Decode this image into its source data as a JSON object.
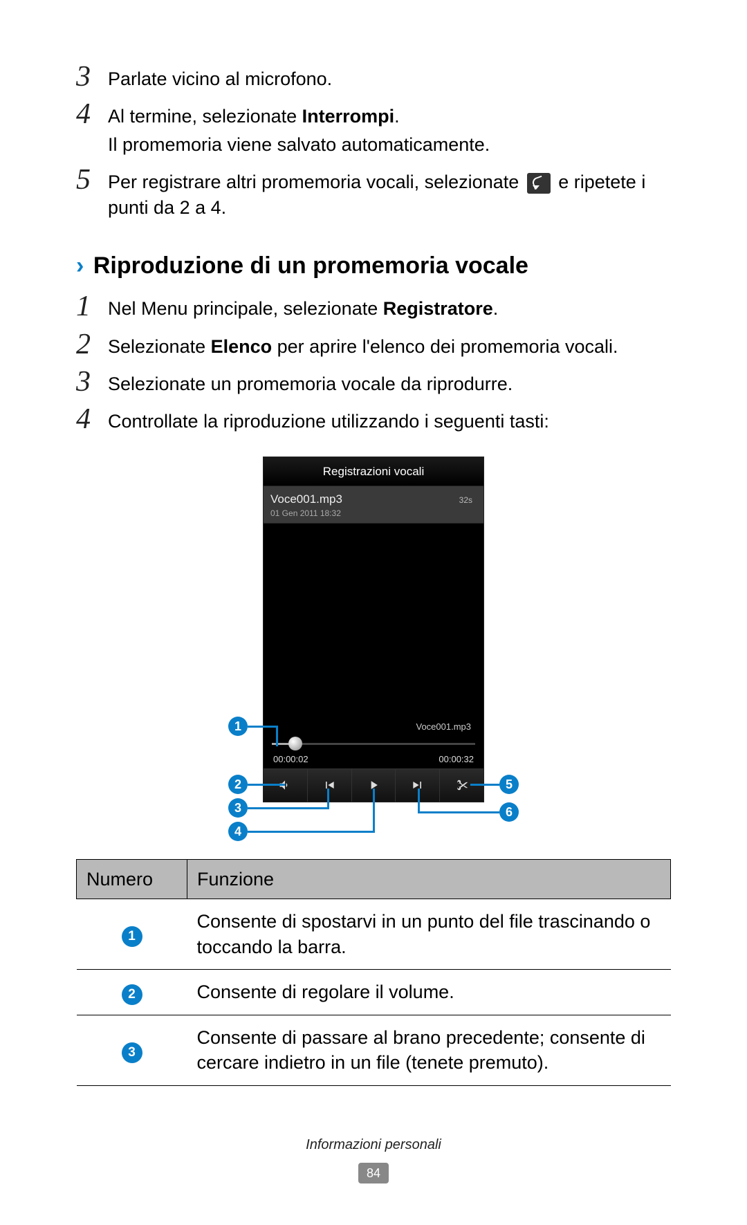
{
  "steps_a": [
    {
      "num": "3",
      "lines": [
        {
          "plain": "Parlate vicino al microfono."
        }
      ]
    },
    {
      "num": "4",
      "lines": [
        {
          "plain": "Al termine, selezionate ",
          "bold": "Interrompi",
          "after": "."
        },
        {
          "plain": "Il promemoria viene salvato automaticamente."
        }
      ]
    },
    {
      "num": "5",
      "lines": [
        {
          "plain": "Per registrare altri promemoria vocali, selezionate ",
          "icon": true,
          "after": " e ripetete i punti da 2 a 4."
        }
      ]
    }
  ],
  "section": {
    "chevron": "›",
    "title": "Riproduzione di un promemoria vocale"
  },
  "steps_b": [
    {
      "num": "1",
      "lines": [
        {
          "plain": "Nel Menu principale, selezionate ",
          "bold": "Registratore",
          "after": "."
        }
      ]
    },
    {
      "num": "2",
      "lines": [
        {
          "plain": "Selezionate ",
          "bold": "Elenco",
          "after": " per aprire l'elenco dei promemoria vocali."
        }
      ]
    },
    {
      "num": "3",
      "lines": [
        {
          "plain": "Selezionate un promemoria vocale da riprodurre."
        }
      ]
    },
    {
      "num": "4",
      "lines": [
        {
          "plain": "Controllate la riproduzione utilizzando i seguenti tasti:"
        }
      ]
    }
  ],
  "phone": {
    "title": "Registrazioni vocali",
    "file_name": "Voce001.mp3",
    "file_dur": "32s",
    "file_date": "01 Gen 2011 18:32",
    "now_playing": "Voce001.mp3",
    "time_elapsed": "00:00:02",
    "time_total": "00:00:32",
    "progress_pct": 10
  },
  "callouts": {
    "c1": "1",
    "c2": "2",
    "c3": "3",
    "c4": "4",
    "c5": "5",
    "c6": "6"
  },
  "table": {
    "head_num": "Numero",
    "head_fun": "Funzione",
    "rows": [
      {
        "n": "1",
        "f": "Consente di spostarvi in un punto del file trascinando o toccando la barra."
      },
      {
        "n": "2",
        "f": "Consente di regolare il volume."
      },
      {
        "n": "3",
        "f": "Consente di passare al brano precedente; consente di cercare indietro in un file (tenete premuto)."
      }
    ]
  },
  "footer": {
    "section": "Informazioni personali",
    "page": "84"
  },
  "colors": {
    "accent": "#0a7fc9",
    "table_header_bg": "#b9b9b9"
  }
}
